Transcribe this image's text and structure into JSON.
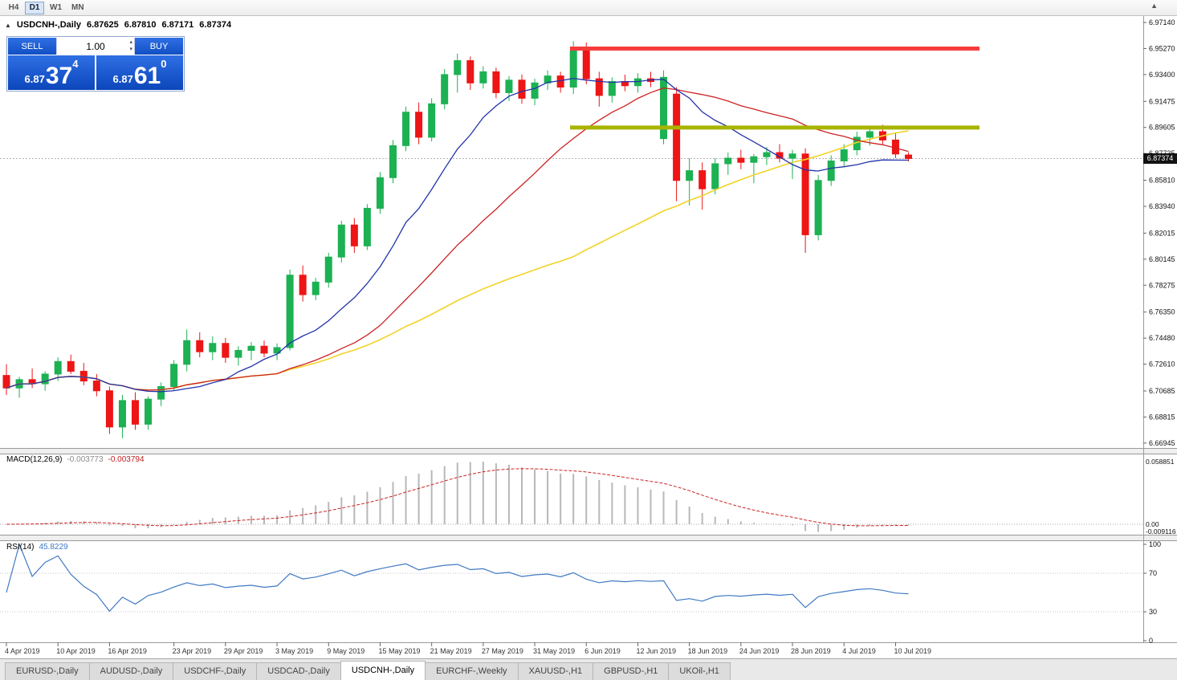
{
  "icons": {
    "collapse": "▲",
    "scroll_up": "▲",
    "spinner_up": "▴",
    "spinner_down": "▾"
  },
  "toolbar": {
    "timeframes": [
      {
        "label": "H4",
        "active": false
      },
      {
        "label": "D1",
        "active": true
      },
      {
        "label": "W1",
        "active": false
      },
      {
        "label": "MN",
        "active": false
      }
    ]
  },
  "symbol_header": {
    "symbol": "USDCNH-,Daily",
    "open": "6.87625",
    "high": "6.87810",
    "low": "6.87171",
    "close": "6.87374"
  },
  "trade_panel": {
    "sell_label": "SELL",
    "buy_label": "BUY",
    "volume": "1.00",
    "sell_price_main": "6.87",
    "sell_price_big": "37",
    "sell_price_sup": "4",
    "buy_price_main": "6.87",
    "buy_price_big": "61",
    "buy_price_sup": "0"
  },
  "indicators": {
    "macd": {
      "name": "MACD(12,26,9)",
      "value_main": "-0.003773",
      "value_signal": "-0.003794",
      "scale_max": "0.058851",
      "scale_zero": "0.00",
      "scale_min": "-0.009116"
    },
    "rsi": {
      "name": "RSI(14)",
      "value": "45.8229",
      "scale": [
        "100",
        "70",
        "30",
        "0"
      ]
    }
  },
  "tabs": [
    {
      "label": "EURUSD-,Daily",
      "active": false
    },
    {
      "label": "AUDUSD-,Daily",
      "active": false
    },
    {
      "label": "USDCHF-,Daily",
      "active": false
    },
    {
      "label": "USDCAD-,Daily",
      "active": false
    },
    {
      "label": "USDCNH-,Daily",
      "active": true
    },
    {
      "label": "EURCHF-,Weekly",
      "active": false
    },
    {
      "label": "XAUUSD-,H1",
      "active": false
    },
    {
      "label": "GBPUSD-,H1",
      "active": false
    },
    {
      "label": "UKOil-,H1",
      "active": false
    }
  ],
  "chart_data": {
    "type": "candlestick",
    "title": "USDCNH-,Daily",
    "symbol": "USDCNH",
    "timeframe": "Daily",
    "current_price": "6.87374",
    "candle_up_color": "#1cb153",
    "candle_down_color": "#ed1515",
    "price_scale_labels": [
      "6.97140",
      "6.95270",
      "6.93400",
      "6.91475",
      "6.89605",
      "6.87735",
      "6.85810",
      "6.83940",
      "6.82015",
      "6.80145",
      "6.78275",
      "6.76350",
      "6.74480",
      "6.72610",
      "6.70685",
      "6.68815",
      "6.66945"
    ],
    "overlays": {
      "resistance_line": {
        "price": 6.9527,
        "color": "#f83b3b"
      },
      "support_line": {
        "price": 6.896,
        "color": "#a8b400"
      },
      "ma_fast_period": 10,
      "ma_fast_color": "#2233aa",
      "ma_mid_period": 22,
      "ma_mid_color": "#cc2222",
      "ma_slow_period": 45,
      "ma_slow_color": "#f2d327"
    },
    "macd": {
      "fast": 12,
      "slow": 26,
      "signal": 9,
      "hist_color": "#b8b8b8",
      "signal_color": "#cc2222"
    },
    "rsi": {
      "period": 14,
      "color": "#4079c4",
      "levels": [
        70,
        30
      ]
    },
    "date_labels": [
      [
        0,
        "4 Apr 2019"
      ],
      [
        4,
        "10 Apr 2019"
      ],
      [
        8,
        "16 Apr 2019"
      ],
      [
        13,
        "23 Apr 2019"
      ],
      [
        17,
        "29 Apr 2019"
      ],
      [
        21,
        "3 May 2019"
      ],
      [
        25,
        "9 May 2019"
      ],
      [
        29,
        "15 May 2019"
      ],
      [
        33,
        "21 May 2019"
      ],
      [
        37,
        "27 May 2019"
      ],
      [
        41,
        "31 May 2019"
      ],
      [
        45,
        "6 Jun 2019"
      ],
      [
        49,
        "12 Jun 2019"
      ],
      [
        53,
        "18 Jun 2019"
      ],
      [
        57,
        "24 Jun 2019"
      ],
      [
        61,
        "28 Jun 2019"
      ],
      [
        65,
        "4 Jul 2019"
      ],
      [
        69,
        "10 Jul 2019"
      ]
    ],
    "ohlc": [
      [
        6.718,
        6.726,
        6.704,
        6.709
      ],
      [
        6.709,
        6.717,
        6.702,
        6.715
      ],
      [
        6.715,
        6.723,
        6.709,
        6.712
      ],
      [
        6.712,
        6.721,
        6.707,
        6.719
      ],
      [
        6.719,
        6.731,
        6.714,
        6.728
      ],
      [
        6.728,
        6.733,
        6.719,
        6.721
      ],
      [
        6.721,
        6.727,
        6.711,
        6.714
      ],
      [
        6.714,
        6.719,
        6.703,
        6.707
      ],
      [
        6.707,
        6.71,
        6.676,
        6.681
      ],
      [
        6.681,
        6.704,
        6.673,
        6.7
      ],
      [
        6.7,
        6.706,
        6.679,
        6.683
      ],
      [
        6.683,
        6.703,
        6.679,
        6.701
      ],
      [
        6.701,
        6.713,
        6.696,
        6.71
      ],
      [
        6.71,
        6.729,
        6.707,
        6.726
      ],
      [
        6.726,
        6.751,
        6.721,
        6.743
      ],
      [
        6.743,
        6.749,
        6.731,
        6.735
      ],
      [
        6.735,
        6.746,
        6.729,
        6.741
      ],
      [
        6.741,
        6.745,
        6.727,
        6.731
      ],
      [
        6.731,
        6.739,
        6.725,
        6.736
      ],
      [
        6.736,
        6.742,
        6.729,
        6.739
      ],
      [
        6.739,
        6.743,
        6.731,
        6.734
      ],
      [
        6.734,
        6.741,
        6.729,
        6.738
      ],
      [
        6.738,
        6.794,
        6.736,
        6.79
      ],
      [
        6.79,
        6.797,
        6.771,
        6.776
      ],
      [
        6.776,
        6.788,
        6.772,
        6.785
      ],
      [
        6.785,
        6.806,
        6.781,
        6.803
      ],
      [
        6.803,
        6.829,
        6.799,
        6.826
      ],
      [
        6.826,
        6.831,
        6.806,
        6.811
      ],
      [
        6.811,
        6.841,
        6.808,
        6.838
      ],
      [
        6.838,
        6.864,
        6.834,
        6.86
      ],
      [
        6.86,
        6.887,
        6.856,
        6.883
      ],
      [
        6.883,
        6.911,
        6.879,
        6.907
      ],
      [
        6.907,
        6.914,
        6.884,
        6.889
      ],
      [
        6.889,
        6.917,
        6.886,
        6.913
      ],
      [
        6.913,
        6.938,
        6.909,
        6.934
      ],
      [
        6.934,
        6.949,
        6.921,
        6.944
      ],
      [
        6.944,
        6.947,
        6.923,
        6.928
      ],
      [
        6.928,
        6.94,
        6.924,
        6.936
      ],
      [
        6.936,
        6.939,
        6.917,
        6.921
      ],
      [
        6.921,
        6.933,
        6.915,
        6.93
      ],
      [
        6.93,
        6.934,
        6.913,
        6.917
      ],
      [
        6.917,
        6.931,
        6.912,
        6.928
      ],
      [
        6.928,
        6.937,
        6.923,
        6.933
      ],
      [
        6.933,
        6.936,
        6.921,
        6.925
      ],
      [
        6.925,
        6.958,
        6.92,
        6.951
      ],
      [
        6.951,
        6.957,
        6.927,
        6.931
      ],
      [
        6.931,
        6.936,
        6.911,
        6.919
      ],
      [
        6.919,
        6.932,
        6.914,
        6.929
      ],
      [
        6.929,
        6.934,
        6.922,
        6.926
      ],
      [
        6.926,
        6.935,
        6.921,
        6.931
      ],
      [
        6.931,
        6.936,
        6.925,
        6.929
      ],
      [
        6.888,
        6.937,
        6.884,
        6.932
      ],
      [
        6.92,
        6.925,
        6.843,
        6.858
      ],
      [
        6.858,
        6.874,
        6.84,
        6.865
      ],
      [
        6.865,
        6.871,
        6.837,
        6.852
      ],
      [
        6.852,
        6.874,
        6.848,
        6.87
      ],
      [
        6.87,
        6.878,
        6.862,
        6.874
      ],
      [
        6.874,
        6.88,
        6.866,
        6.871
      ],
      [
        6.871,
        6.877,
        6.856,
        6.875
      ],
      [
        6.875,
        6.882,
        6.869,
        6.878
      ],
      [
        6.878,
        6.884,
        6.871,
        6.874
      ],
      [
        6.874,
        6.88,
        6.859,
        6.877
      ],
      [
        6.877,
        6.881,
        6.806,
        6.819
      ],
      [
        6.819,
        6.862,
        6.815,
        6.858
      ],
      [
        6.858,
        6.876,
        6.854,
        6.872
      ],
      [
        6.872,
        6.884,
        6.868,
        6.88
      ],
      [
        6.88,
        6.893,
        6.876,
        6.889
      ],
      [
        6.889,
        6.897,
        6.883,
        6.893
      ],
      [
        6.893,
        6.898,
        6.884,
        6.887
      ],
      [
        6.887,
        6.892,
        6.874,
        6.877
      ],
      [
        6.87625,
        6.8781,
        6.87171,
        6.87374
      ]
    ]
  }
}
